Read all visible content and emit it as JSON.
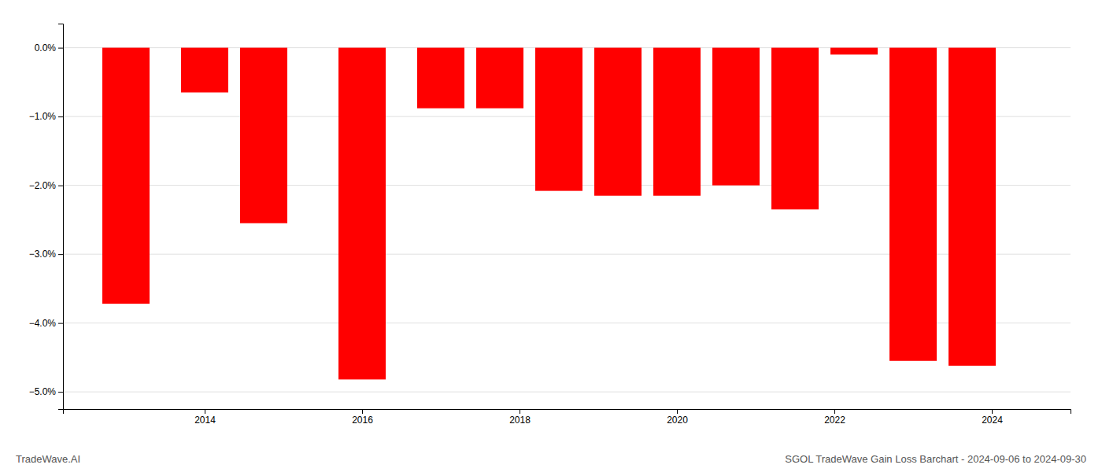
{
  "chart_data": {
    "type": "bar",
    "x": [
      2013,
      2014,
      2014.75,
      2016,
      2017,
      2017.75,
      2018.5,
      2019.25,
      2020,
      2020.75,
      2021.5,
      2022.25,
      2023,
      2023.75
    ],
    "values": [
      -3.72,
      -0.65,
      -2.55,
      -4.82,
      -0.88,
      -0.88,
      -2.08,
      -2.15,
      -2.15,
      -2.0,
      -2.35,
      -0.1,
      -4.55,
      -4.62
    ],
    "color": "#ff0000",
    "xlim": [
      2012.2,
      2025.0
    ],
    "xticks": [
      2014,
      2016,
      2018,
      2020,
      2022,
      2024
    ],
    "ylim": [
      -5.25,
      0.35
    ],
    "yticks": [
      {
        "value": 0.0,
        "label": "0.0%"
      },
      {
        "value": -1.0,
        "label": "−1.0%"
      },
      {
        "value": -2.0,
        "label": "−2.0%"
      },
      {
        "value": -3.0,
        "label": "−3.0%"
      },
      {
        "value": -4.0,
        "label": "−4.0%"
      },
      {
        "value": -5.0,
        "label": "−5.0%"
      }
    ],
    "grid": true,
    "annotations": [
      "TradeWave.AI",
      "SGOL TradeWave Gain Loss Barchart - 2024-09-06 to 2024-09-30"
    ]
  }
}
